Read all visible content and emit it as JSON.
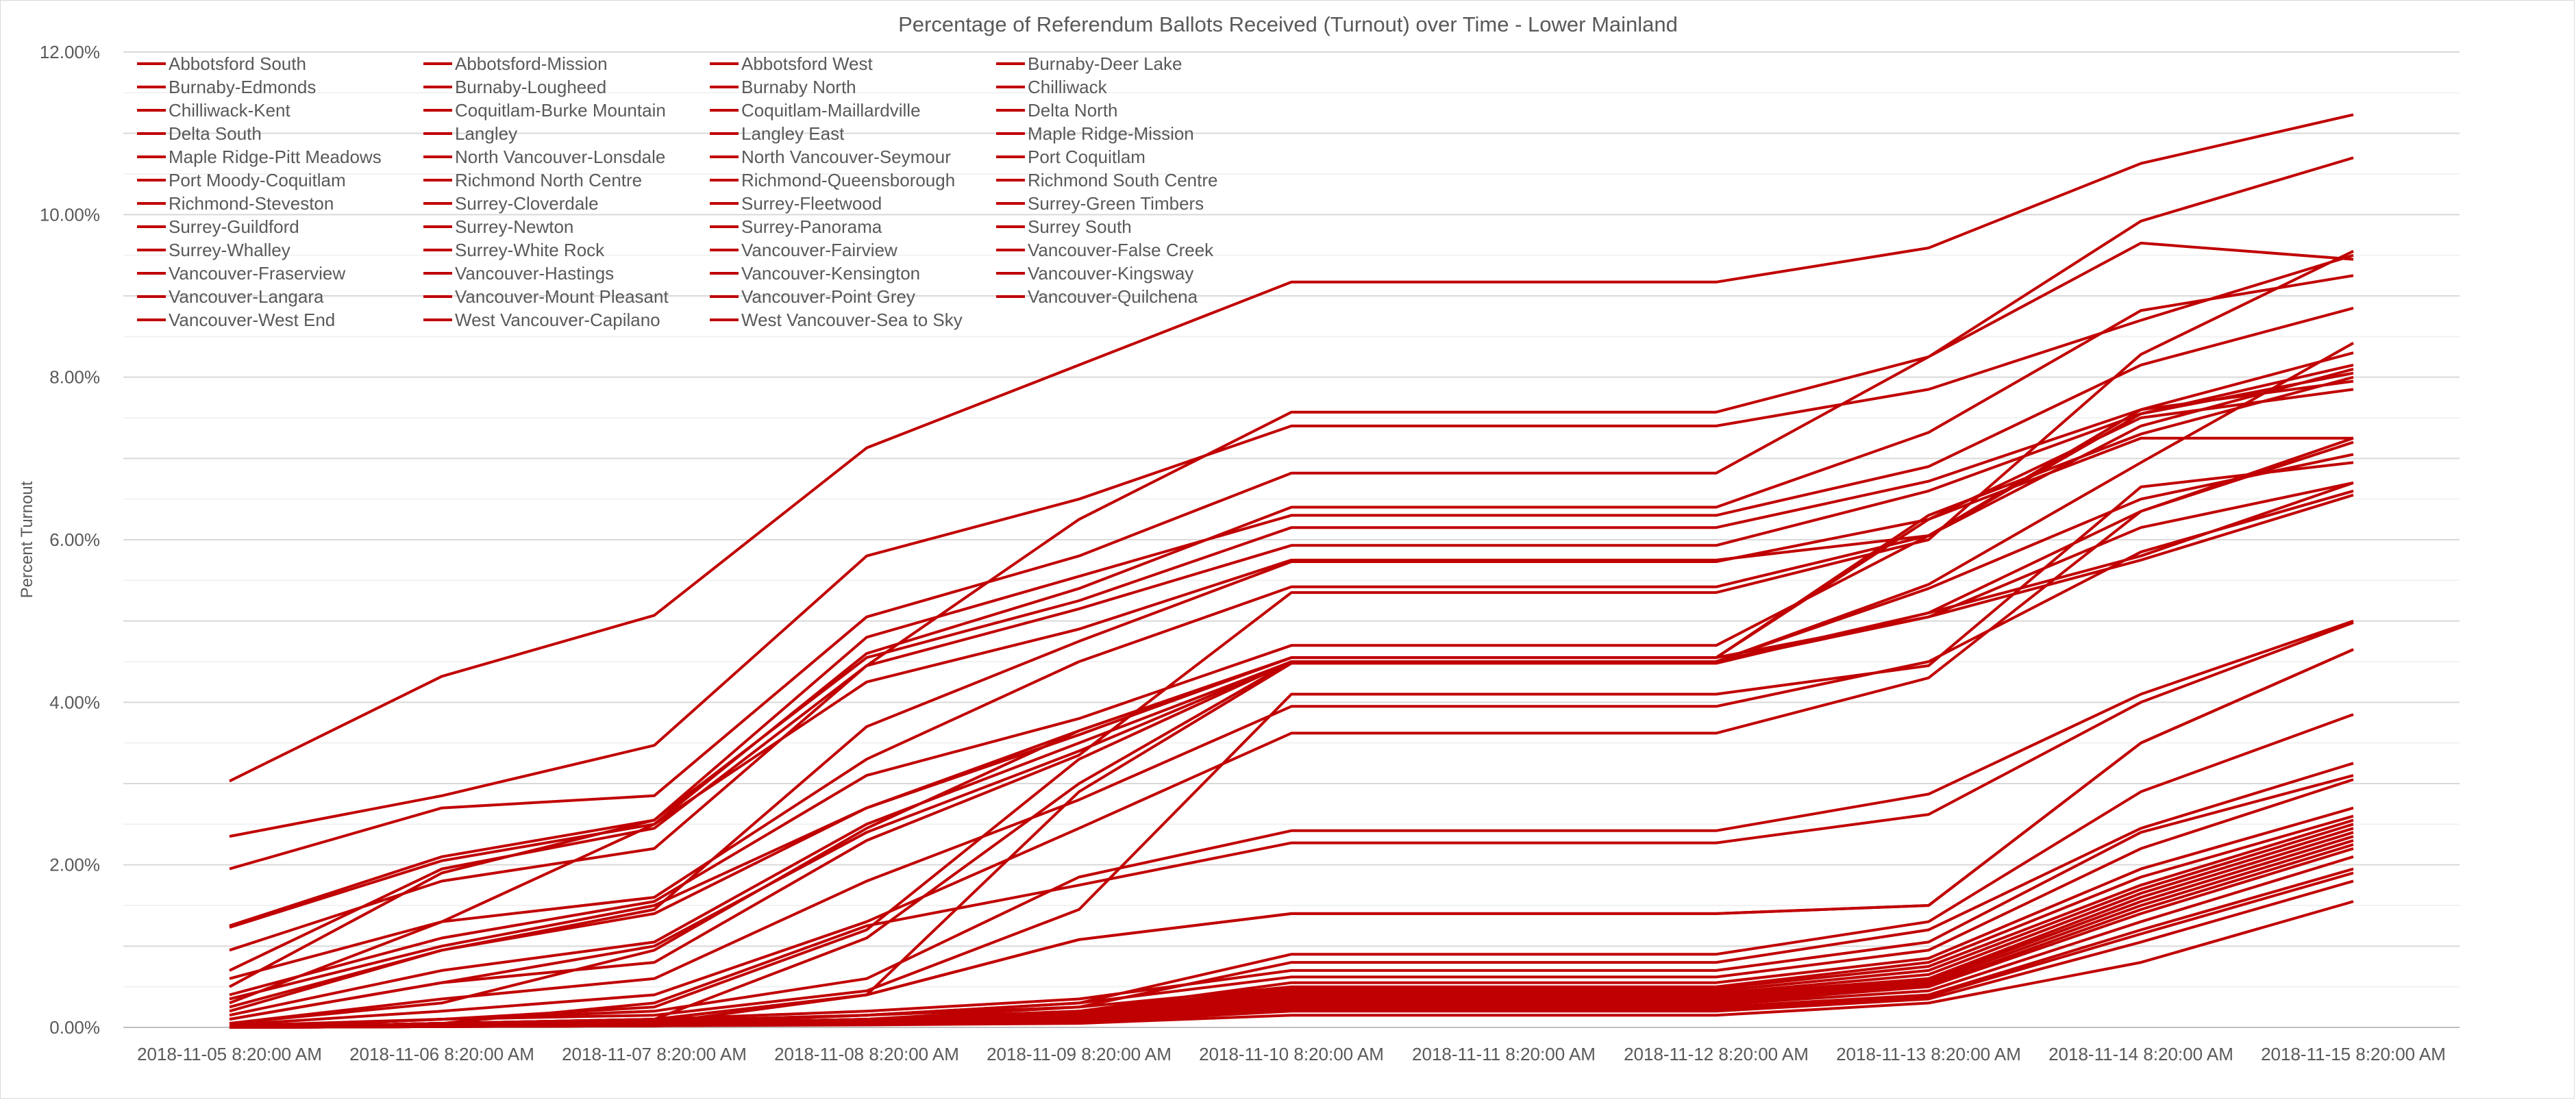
{
  "chart_data": {
    "type": "line",
    "title": "Percentage of Referendum Ballots Received (Turnout) over Time - Lower Mainland",
    "xlabel": "",
    "ylabel": "Percent Turnout",
    "x": [
      "2018-11-05 8:20:00 AM",
      "2018-11-06 8:20:00 AM",
      "2018-11-07 8:20:00 AM",
      "2018-11-08 8:20:00 AM",
      "2018-11-09 8:20:00 AM",
      "2018-11-10 8:20:00 AM",
      "2018-11-11 8:20:00 AM",
      "2018-11-12 8:20:00 AM",
      "2018-11-13 8:20:00 AM",
      "2018-11-14 8:20:00 AM",
      "2018-11-15 8:20:00 AM"
    ],
    "y_ticks": [
      "0.00%",
      "2.00%",
      "4.00%",
      "6.00%",
      "8.00%",
      "10.00%",
      "12.00%"
    ],
    "ylim": [
      0,
      12
    ],
    "grid": true,
    "legend_position": "top-left",
    "line_color": "#c00000",
    "series": [
      {
        "name": "Abbotsford South",
        "values": [
          1.23,
          2.05,
          2.5,
          4.6,
          5.4,
          6.4,
          6.4,
          6.4,
          7.32,
          8.82,
          9.25
        ]
      },
      {
        "name": "Abbotsford-Mission",
        "values": [
          1.25,
          2.1,
          2.55,
          4.55,
          5.25,
          6.15,
          6.15,
          6.15,
          6.72,
          7.6,
          8.3
        ]
      },
      {
        "name": "Abbotsford West",
        "values": [
          0.95,
          1.8,
          2.2,
          4.45,
          5.15,
          5.93,
          5.93,
          5.93,
          6.6,
          7.55,
          8.15
        ]
      },
      {
        "name": "Burnaby-Deer Lake",
        "values": [
          0.05,
          0.3,
          0.95,
          2.45,
          3.65,
          4.55,
          4.55,
          4.55,
          6.25,
          7.5,
          7.85
        ]
      },
      {
        "name": "Burnaby-Edmonds",
        "values": [
          0.02,
          0.1,
          0.25,
          1.2,
          3.3,
          4.5,
          4.5,
          4.5,
          5.45,
          6.95,
          8.42
        ]
      },
      {
        "name": "Burnaby-Lougheed",
        "values": [
          0.15,
          0.7,
          1.05,
          2.5,
          3.5,
          4.5,
          4.5,
          4.5,
          5.1,
          6.35,
          7.2
        ]
      },
      {
        "name": "Burnaby North",
        "values": [
          0.35,
          1.0,
          1.5,
          2.7,
          3.6,
          4.55,
          4.55,
          4.55,
          5.05,
          6.15,
          6.7
        ]
      },
      {
        "name": "Chilliwack",
        "values": [
          2.35,
          2.85,
          3.47,
          5.8,
          6.5,
          7.4,
          7.4,
          7.4,
          7.85,
          8.7,
          9.5
        ]
      },
      {
        "name": "Chilliwack-Kent",
        "values": [
          3.03,
          4.32,
          5.07,
          7.13,
          8.15,
          9.17,
          9.17,
          9.17,
          9.59,
          10.63,
          11.23
        ]
      },
      {
        "name": "Coquitlam-Burke Mountain",
        "values": [
          0.25,
          0.95,
          1.4,
          2.7,
          3.65,
          4.55,
          4.55,
          4.55,
          6.3,
          7.3,
          8.0
        ]
      },
      {
        "name": "Coquitlam-Maillardville",
        "values": [
          0.1,
          0.55,
          1.0,
          2.4,
          3.4,
          4.5,
          4.5,
          4.5,
          5.05,
          5.75,
          6.55
        ]
      },
      {
        "name": "Delta North",
        "values": [
          0.4,
          1.1,
          1.55,
          3.1,
          3.8,
          4.7,
          4.7,
          4.7,
          6.05,
          7.55,
          8.05
        ]
      },
      {
        "name": "Delta South",
        "values": [
          1.95,
          2.7,
          2.85,
          5.05,
          5.8,
          6.82,
          6.82,
          6.82,
          8.25,
          9.92,
          10.7
        ]
      },
      {
        "name": "Langley",
        "values": [
          0.6,
          1.3,
          1.6,
          3.3,
          4.5,
          5.42,
          5.42,
          5.42,
          6.05,
          7.6,
          7.95
        ]
      },
      {
        "name": "Langley East",
        "values": [
          0.7,
          1.95,
          2.45,
          4.45,
          6.25,
          7.57,
          7.57,
          7.57,
          8.25,
          9.65,
          9.45
        ]
      },
      {
        "name": "Maple Ridge-Mission",
        "values": [
          0.5,
          1.9,
          2.55,
          4.8,
          5.55,
          6.3,
          6.3,
          6.3,
          6.9,
          8.15,
          8.85
        ]
      },
      {
        "name": "Maple Ridge-Pitt Meadows",
        "values": [
          0.3,
          1.3,
          2.5,
          4.25,
          4.9,
          5.75,
          5.75,
          5.75,
          6.05,
          7.4,
          8.1
        ]
      },
      {
        "name": "North Vancouver-Lonsdale",
        "values": [
          0.2,
          0.95,
          1.45,
          3.7,
          4.75,
          5.73,
          5.73,
          5.73,
          6.25,
          7.25,
          7.25
        ]
      },
      {
        "name": "North Vancouver-Seymour",
        "values": [
          0.1,
          0.55,
          0.8,
          2.3,
          3.35,
          5.35,
          5.35,
          5.35,
          6.0,
          8.28,
          9.55
        ]
      },
      {
        "name": "Port Coquitlam",
        "values": [
          0.05,
          0.35,
          0.6,
          1.8,
          2.8,
          3.95,
          3.95,
          3.95,
          4.5,
          5.85,
          6.6
        ]
      },
      {
        "name": "Port Moody-Coquitlam",
        "values": [
          0.03,
          0.2,
          0.4,
          1.3,
          2.45,
          3.62,
          3.62,
          3.62,
          4.3,
          6.35,
          7.25
        ]
      },
      {
        "name": "Richmond North Centre",
        "values": [
          0.0,
          0.1,
          0.2,
          0.6,
          1.85,
          2.42,
          2.42,
          2.42,
          2.87,
          4.1,
          5.0
        ]
      },
      {
        "name": "Richmond-Queensborough",
        "values": [
          0.0,
          0.05,
          0.1,
          0.4,
          1.08,
          1.4,
          1.4,
          1.4,
          1.5,
          3.5,
          4.65
        ]
      },
      {
        "name": "Richmond South Centre",
        "values": [
          0.0,
          0.05,
          0.1,
          0.4,
          1.08,
          1.4,
          1.4,
          1.4,
          1.5,
          3.5,
          4.65
        ]
      },
      {
        "name": "Richmond-Steveston",
        "values": [
          0.0,
          0.05,
          0.3,
          1.25,
          1.75,
          2.27,
          2.27,
          2.27,
          2.62,
          4.0,
          4.98
        ]
      },
      {
        "name": "Surrey-Cloverdale",
        "values": [
          0.0,
          0.1,
          0.15,
          0.45,
          1.45,
          4.1,
          4.1,
          4.1,
          4.45,
          6.65,
          6.95
        ]
      },
      {
        "name": "Surrey-Fleetwood",
        "values": [
          0.0,
          0.05,
          0.05,
          0.4,
          2.9,
          4.48,
          4.48,
          4.48,
          5.1,
          5.8,
          6.7
        ]
      },
      {
        "name": "Surrey-Green Timbers",
        "values": [
          0.0,
          0.05,
          0.1,
          1.1,
          3.0,
          4.5,
          4.5,
          4.5,
          5.4,
          6.5,
          7.05
        ]
      },
      {
        "name": "Surrey-Guildford",
        "values": [
          0.0,
          0.05,
          0.05,
          0.15,
          0.3,
          0.9,
          0.9,
          0.9,
          1.3,
          2.9,
          3.85
        ]
      },
      {
        "name": "Surrey-Newton",
        "values": [
          0.0,
          0.03,
          0.05,
          0.1,
          0.25,
          0.8,
          0.8,
          0.8,
          1.2,
          2.45,
          3.25
        ]
      },
      {
        "name": "Surrey-Panorama",
        "values": [
          0.0,
          0.05,
          0.1,
          0.2,
          0.35,
          0.7,
          0.7,
          0.7,
          1.05,
          2.4,
          3.1
        ]
      },
      {
        "name": "Surrey South",
        "values": [
          0.0,
          0.03,
          0.08,
          0.15,
          0.3,
          0.62,
          0.62,
          0.62,
          0.95,
          2.2,
          3.05
        ]
      },
      {
        "name": "Surrey-Whalley",
        "values": [
          0.0,
          0.02,
          0.05,
          0.1,
          0.2,
          0.55,
          0.55,
          0.55,
          0.85,
          1.95,
          2.7
        ]
      },
      {
        "name": "Surrey-White Rock",
        "values": [
          0.0,
          0.05,
          0.08,
          0.15,
          0.25,
          0.5,
          0.5,
          0.5,
          0.8,
          1.85,
          2.6
        ]
      },
      {
        "name": "Vancouver-Fairview",
        "values": [
          0.0,
          0.02,
          0.05,
          0.1,
          0.2,
          0.48,
          0.48,
          0.48,
          0.75,
          1.75,
          2.55
        ]
      },
      {
        "name": "Vancouver-False Creek",
        "values": [
          0.0,
          0.02,
          0.05,
          0.1,
          0.18,
          0.45,
          0.45,
          0.45,
          0.7,
          1.7,
          2.5
        ]
      },
      {
        "name": "Vancouver-Fraserview",
        "values": [
          0.0,
          0.02,
          0.05,
          0.08,
          0.15,
          0.42,
          0.42,
          0.42,
          0.65,
          1.65,
          2.45
        ]
      },
      {
        "name": "Vancouver-Hastings",
        "values": [
          0.0,
          0.02,
          0.04,
          0.08,
          0.15,
          0.4,
          0.4,
          0.4,
          0.6,
          1.6,
          2.4
        ]
      },
      {
        "name": "Vancouver-Kensington",
        "values": [
          0.0,
          0.02,
          0.04,
          0.07,
          0.12,
          0.38,
          0.38,
          0.38,
          0.58,
          1.55,
          2.35
        ]
      },
      {
        "name": "Vancouver-Kingsway",
        "values": [
          0.0,
          0.01,
          0.03,
          0.06,
          0.12,
          0.35,
          0.35,
          0.35,
          0.55,
          1.5,
          2.3
        ]
      },
      {
        "name": "Vancouver-Langara",
        "values": [
          0.0,
          0.01,
          0.03,
          0.06,
          0.1,
          0.32,
          0.32,
          0.32,
          0.52,
          1.45,
          2.25
        ]
      },
      {
        "name": "Vancouver-Mount Pleasant",
        "values": [
          0.0,
          0.01,
          0.03,
          0.05,
          0.1,
          0.3,
          0.3,
          0.3,
          0.5,
          1.4,
          2.2
        ]
      },
      {
        "name": "Vancouver-Point Grey",
        "values": [
          0.0,
          0.01,
          0.02,
          0.05,
          0.08,
          0.28,
          0.28,
          0.28,
          0.45,
          1.3,
          2.1
        ]
      },
      {
        "name": "Vancouver-Quilchena",
        "values": [
          0.0,
          0.01,
          0.02,
          0.04,
          0.07,
          0.25,
          0.25,
          0.25,
          0.4,
          1.2,
          1.95
        ]
      },
      {
        "name": "Vancouver-West End",
        "values": [
          0.0,
          0.01,
          0.02,
          0.04,
          0.06,
          0.2,
          0.2,
          0.2,
          0.35,
          1.05,
          1.8
        ]
      },
      {
        "name": "West Vancouver-Capilano",
        "values": [
          0.0,
          0.01,
          0.02,
          0.03,
          0.05,
          0.15,
          0.15,
          0.15,
          0.3,
          0.8,
          1.55
        ]
      },
      {
        "name": "West Vancouver-Sea to Sky",
        "values": [
          0.0,
          0.01,
          0.02,
          0.04,
          0.08,
          0.22,
          0.22,
          0.22,
          0.38,
          1.15,
          1.9
        ]
      }
    ]
  }
}
